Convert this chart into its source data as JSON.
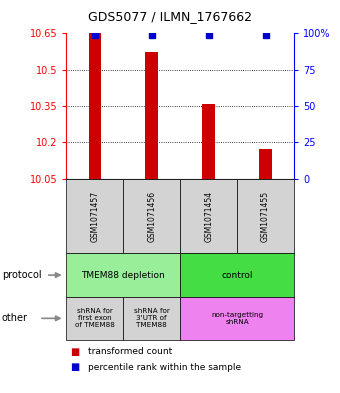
{
  "title": "GDS5077 / ILMN_1767662",
  "samples": [
    "GSM1071457",
    "GSM1071456",
    "GSM1071454",
    "GSM1071455"
  ],
  "red_values": [
    10.65,
    10.575,
    10.36,
    10.175
  ],
  "blue_values": [
    10.645,
    10.645,
    10.645,
    10.643
  ],
  "red_base": 10.05,
  "ylim": [
    10.05,
    10.65
  ],
  "yticks_left": [
    10.05,
    10.2,
    10.35,
    10.5,
    10.65
  ],
  "yticks_right": [
    0,
    25,
    50,
    75,
    100
  ],
  "ytick_labels_right": [
    "0",
    "25",
    "50",
    "75",
    "100%"
  ],
  "bar_color": "#cc0000",
  "dot_color": "#0000cc",
  "sample_box_color": "#d3d3d3",
  "proto_group1_color": "#99ee99",
  "proto_group2_color": "#44dd44",
  "other_gray": "#d3d3d3",
  "other_magenta": "#ee82ee",
  "bg_color": "#ffffff",
  "legend_red": "transformed count",
  "legend_blue": "percentile rank within the sample"
}
